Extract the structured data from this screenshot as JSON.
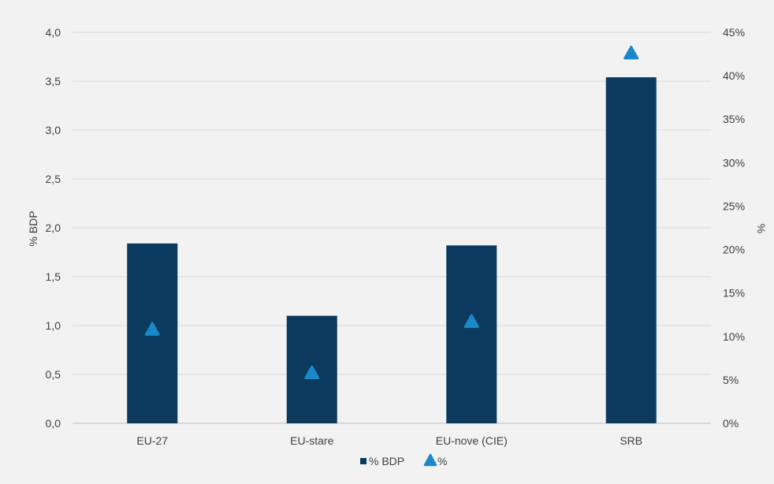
{
  "chart_data": {
    "type": "bar",
    "categories": [
      "EU-27",
      "EU-stare",
      "EU-nove (CIE)",
      "SRB"
    ],
    "series": [
      {
        "name": "% BDP",
        "axis": "left",
        "kind": "bar",
        "values": [
          1.84,
          1.1,
          1.82,
          3.54
        ]
      },
      {
        "name": "%",
        "axis": "right",
        "kind": "marker",
        "marker": "triangle",
        "values": [
          10.8,
          5.8,
          11.7,
          42.6
        ]
      }
    ],
    "ylabel": "% BDP",
    "y2label": "%",
    "ylim": [
      0,
      4
    ],
    "y2lim": [
      0,
      45
    ],
    "y_ticks": [
      "0,0",
      "0,5",
      "1,0",
      "1,5",
      "2,0",
      "2,5",
      "3,0",
      "3,5",
      "4,0"
    ],
    "y2_ticks": [
      "0%",
      "5%",
      "10%",
      "15%",
      "20%",
      "25%",
      "30%",
      "35%",
      "40%",
      "45%"
    ],
    "grid": true,
    "legend_position": "bottom",
    "colors": {
      "bar": "#0b3a5e",
      "marker": "#1a88c9",
      "grid": "#d9d9d9"
    }
  }
}
